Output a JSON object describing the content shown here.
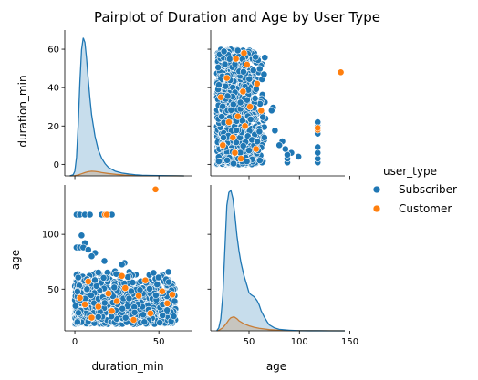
{
  "chart_data": {
    "type": "scatter",
    "title": "Pairplot of Duration and Age by User Type",
    "variables": [
      "duration_min",
      "age"
    ],
    "hue": "user_type",
    "legend": {
      "title": "user_type",
      "placement": "right",
      "entries": [
        {
          "name": "Subscriber",
          "color": "#1f77b4"
        },
        {
          "name": "Customer",
          "color": "#ff7f0e"
        }
      ]
    },
    "axes": {
      "duration_min": {
        "label": "duration_min",
        "range": [
          -6,
          70
        ],
        "ticks": [
          0,
          20,
          40,
          60
        ],
        "ticks_x": [
          0,
          50
        ]
      },
      "age": {
        "label": "age",
        "range": [
          12,
          145
        ],
        "ticks": [
          50,
          100
        ],
        "ticks_x": [
          50,
          100,
          150
        ]
      }
    },
    "kde": {
      "duration_min": {
        "Subscriber": {
          "x": [
            -3,
            -1,
            0,
            1,
            2,
            3,
            4,
            5,
            6,
            7,
            8,
            9,
            10,
            12,
            14,
            16,
            18,
            20,
            24,
            28,
            32,
            36,
            40,
            45,
            50,
            55,
            60,
            65
          ],
          "y": [
            0,
            0.5,
            2,
            8,
            22,
            40,
            54,
            59,
            57,
            50,
            41,
            33,
            26,
            17,
            11,
            7.5,
            5.2,
            3.6,
            2,
            1.2,
            0.8,
            0.5,
            0.3,
            0.2,
            0.12,
            0.08,
            0.04,
            0
          ]
        },
        "Customer": {
          "x": [
            -3,
            0,
            2,
            4,
            6,
            8,
            10,
            12,
            14,
            16,
            20,
            25,
            30,
            35,
            40,
            50,
            60,
            65
          ],
          "y": [
            0,
            0.1,
            0.4,
            0.9,
            1.4,
            1.8,
            2,
            1.9,
            1.7,
            1.4,
            1.0,
            0.6,
            0.35,
            0.2,
            0.12,
            0.05,
            0.02,
            0
          ]
        }
      },
      "age": {
        "Subscriber": {
          "x": [
            18,
            20,
            22,
            24,
            26,
            28,
            30,
            32,
            34,
            36,
            38,
            40,
            42,
            45,
            48,
            50,
            52,
            55,
            58,
            60,
            62,
            65,
            68,
            70,
            75,
            80,
            85,
            90,
            95,
            100,
            110,
            120,
            130,
            145
          ],
          "y": [
            0,
            3,
            12,
            35,
            80,
            125,
            138,
            140,
            132,
            115,
            95,
            80,
            68,
            55,
            45,
            38,
            36,
            34,
            30,
            26,
            20,
            14,
            9,
            6,
            3,
            1.5,
            1,
            0.6,
            0.3,
            0.1,
            0.05,
            0.05,
            0.02,
            0
          ]
        },
        "Customer": {
          "x": [
            18,
            20,
            24,
            28,
            30,
            32,
            35,
            38,
            40,
            45,
            50,
            55,
            60,
            70,
            80,
            90,
            100,
            120,
            145
          ],
          "y": [
            0,
            0.5,
            3,
            8,
            11,
            13,
            14,
            12,
            10,
            7,
            5,
            3.5,
            2.5,
            1.2,
            0.6,
            0.3,
            0.2,
            0.1,
            0
          ]
        }
      }
    },
    "scatter": {
      "Subscriber": {
        "n": 1500
      },
      "Customer": {
        "points": [
          {
            "duration_min": 48,
            "age": 141
          },
          {
            "duration_min": 18,
            "age": 118
          },
          {
            "duration_min": 19,
            "age": 118
          },
          {
            "duration_min": 3,
            "age": 42
          },
          {
            "duration_min": 8,
            "age": 57
          },
          {
            "duration_min": 14,
            "age": 34
          },
          {
            "duration_min": 20,
            "age": 46
          },
          {
            "duration_min": 25,
            "age": 39
          },
          {
            "duration_min": 30,
            "age": 51
          },
          {
            "duration_min": 38,
            "age": 44
          },
          {
            "duration_min": 45,
            "age": 28
          },
          {
            "duration_min": 52,
            "age": 48
          },
          {
            "duration_min": 55,
            "age": 37
          },
          {
            "duration_min": 58,
            "age": 45
          },
          {
            "duration_min": 10,
            "age": 24
          },
          {
            "duration_min": 22,
            "age": 30
          },
          {
            "duration_min": 35,
            "age": 22
          },
          {
            "duration_min": 6,
            "age": 36
          },
          {
            "duration_min": 42,
            "age": 58
          },
          {
            "duration_min": 28,
            "age": 62
          }
        ]
      },
      "Subscriber_outliers": [
        {
          "duration_min": 1,
          "age": 118
        },
        {
          "duration_min": 3,
          "age": 118
        },
        {
          "duration_min": 6,
          "age": 118
        },
        {
          "duration_min": 9,
          "age": 118
        },
        {
          "duration_min": 16,
          "age": 118
        },
        {
          "duration_min": 20,
          "age": 118
        },
        {
          "duration_min": 22,
          "age": 118
        },
        {
          "duration_min": 4,
          "age": 99
        },
        {
          "duration_min": 6,
          "age": 92
        },
        {
          "duration_min": 1,
          "age": 88
        },
        {
          "duration_min": 3,
          "age": 88
        },
        {
          "duration_min": 5,
          "age": 88
        },
        {
          "duration_min": 8,
          "age": 86
        },
        {
          "duration_min": 12,
          "age": 83
        },
        {
          "duration_min": 10,
          "age": 80
        }
      ]
    }
  }
}
